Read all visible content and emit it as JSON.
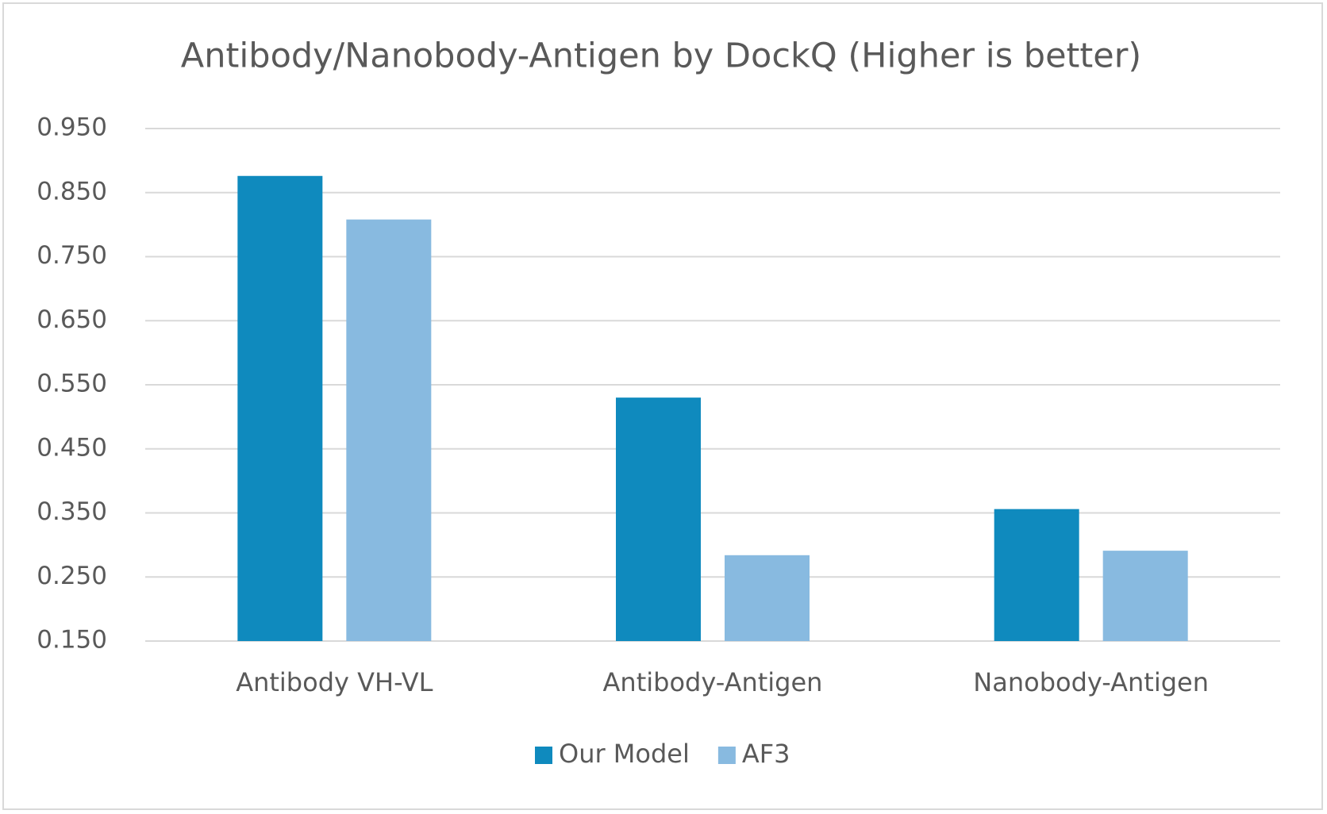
{
  "chart_data": {
    "type": "bar",
    "title": "Antibody/Nanobody-Antigen by DockQ (Higher is better)",
    "categories": [
      "Antibody VH-VL",
      "Antibody-Antigen",
      "Nanobody-Antigen"
    ],
    "series": [
      {
        "name": "Our Model",
        "color": "#0f8abe",
        "values": [
          0.876,
          0.53,
          0.356
        ]
      },
      {
        "name": "AF3",
        "color": "#88bae0",
        "values": [
          0.808,
          0.284,
          0.291
        ]
      }
    ],
    "ylim": [
      0.15,
      0.95
    ],
    "yticks": [
      {
        "value": 0.15,
        "label": "0.150"
      },
      {
        "value": 0.25,
        "label": "0.250"
      },
      {
        "value": 0.35,
        "label": "0.350"
      },
      {
        "value": 0.45,
        "label": "0.450"
      },
      {
        "value": 0.55,
        "label": "0.550"
      },
      {
        "value": 0.65,
        "label": "0.650"
      },
      {
        "value": 0.75,
        "label": "0.750"
      },
      {
        "value": 0.85,
        "label": "0.850"
      },
      {
        "value": 0.95,
        "label": "0.950"
      }
    ],
    "grid": true,
    "legend": "bottom"
  }
}
